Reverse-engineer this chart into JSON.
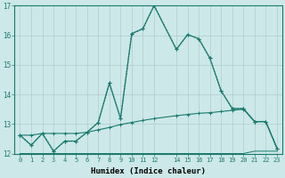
{
  "xlabel": "Humidex (Indice chaleur)",
  "bg_color": "#cce8e8",
  "grid_color": "#b0cccc",
  "line_color": "#1a7a6e",
  "xlim": [
    -0.5,
    23.5
  ],
  "ylim": [
    12,
    17
  ],
  "yticks": [
    12,
    13,
    14,
    15,
    16,
    17
  ],
  "xticks": [
    0,
    1,
    2,
    3,
    4,
    5,
    6,
    7,
    8,
    9,
    10,
    11,
    12,
    14,
    15,
    16,
    17,
    18,
    19,
    20,
    21,
    22,
    23
  ],
  "xtick_labels": [
    "0",
    "1",
    "2",
    "3",
    "4",
    "5",
    "6",
    "7",
    "8",
    "9",
    "10",
    "11",
    "12",
    "14",
    "15",
    "16",
    "17",
    "18",
    "19",
    "20",
    "21",
    "22",
    "23"
  ],
  "line1_x": [
    0,
    1,
    2,
    3,
    4,
    5,
    6,
    7,
    8,
    9,
    10,
    11,
    12,
    14,
    15,
    16,
    17,
    18,
    19,
    20,
    21,
    22,
    23
  ],
  "line1_y": [
    12.62,
    12.28,
    12.68,
    12.08,
    12.42,
    12.42,
    12.72,
    13.05,
    14.38,
    13.18,
    16.05,
    16.22,
    17.0,
    15.52,
    16.02,
    15.88,
    15.22,
    14.12,
    13.52,
    13.52,
    13.08,
    13.08,
    12.18
  ],
  "line2_x": [
    0,
    1,
    2,
    3,
    4,
    5,
    6,
    7,
    8,
    9,
    10,
    11,
    12,
    14,
    15,
    16,
    17,
    18,
    19,
    20,
    21,
    22,
    23
  ],
  "line2_y": [
    12.62,
    12.28,
    12.68,
    12.08,
    12.42,
    12.42,
    12.72,
    13.05,
    14.38,
    13.18,
    16.05,
    16.22,
    17.0,
    15.52,
    16.02,
    15.88,
    15.22,
    14.12,
    13.52,
    13.52,
    13.08,
    13.08,
    12.18
  ],
  "line3_x": [
    0,
    1,
    2,
    3,
    4,
    5,
    6,
    7,
    8,
    9,
    10,
    11,
    12,
    14,
    15,
    16,
    17,
    18,
    19,
    20,
    21,
    22,
    23
  ],
  "line3_y": [
    12.62,
    12.62,
    12.68,
    12.68,
    12.68,
    12.68,
    12.72,
    12.8,
    12.88,
    12.98,
    13.05,
    13.12,
    13.18,
    13.28,
    13.32,
    13.36,
    13.38,
    13.42,
    13.46,
    13.5,
    13.08,
    13.08,
    12.18
  ],
  "line4_x": [
    0,
    1,
    2,
    3,
    4,
    5,
    6,
    7,
    8,
    9,
    10,
    11,
    12,
    14,
    15,
    16,
    17,
    18,
    19,
    20,
    21,
    22,
    23
  ],
  "line4_y": [
    12.0,
    12.0,
    12.0,
    12.0,
    12.0,
    12.0,
    12.0,
    12.0,
    12.0,
    12.0,
    12.0,
    12.0,
    12.0,
    12.0,
    12.0,
    12.0,
    12.0,
    12.0,
    12.0,
    12.0,
    12.08,
    12.08,
    12.08
  ]
}
